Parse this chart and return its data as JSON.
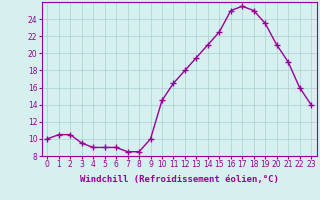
{
  "x": [
    0,
    1,
    2,
    3,
    4,
    5,
    6,
    7,
    8,
    9,
    10,
    11,
    12,
    13,
    14,
    15,
    16,
    17,
    18,
    19,
    20,
    21,
    22,
    23
  ],
  "y": [
    10.0,
    10.5,
    10.5,
    9.5,
    9.0,
    9.0,
    9.0,
    8.5,
    8.5,
    10.0,
    14.5,
    16.5,
    18.0,
    19.5,
    21.0,
    22.5,
    25.0,
    25.5,
    25.0,
    23.5,
    21.0,
    19.0,
    16.0,
    14.0
  ],
  "line_color": "#990099",
  "marker": "+",
  "marker_size": 4,
  "marker_lw": 1.0,
  "bg_color": "#d6f0f0",
  "grid_color": "#aacfcf",
  "xlabel": "Windchill (Refroidissement éolien,°C)",
  "xlabel_color": "#990099",
  "xlim": [
    -0.5,
    23.5
  ],
  "ylim": [
    8,
    26
  ],
  "yticks": [
    8,
    10,
    12,
    14,
    16,
    18,
    20,
    22,
    24
  ],
  "xticks": [
    0,
    1,
    2,
    3,
    4,
    5,
    6,
    7,
    8,
    9,
    10,
    11,
    12,
    13,
    14,
    15,
    16,
    17,
    18,
    19,
    20,
    21,
    22,
    23
  ],
  "tick_color": "#990099",
  "tick_fontsize": 5.5,
  "xlabel_fontsize": 6.5,
  "spine_color": "#990099",
  "linewidth": 1.0
}
